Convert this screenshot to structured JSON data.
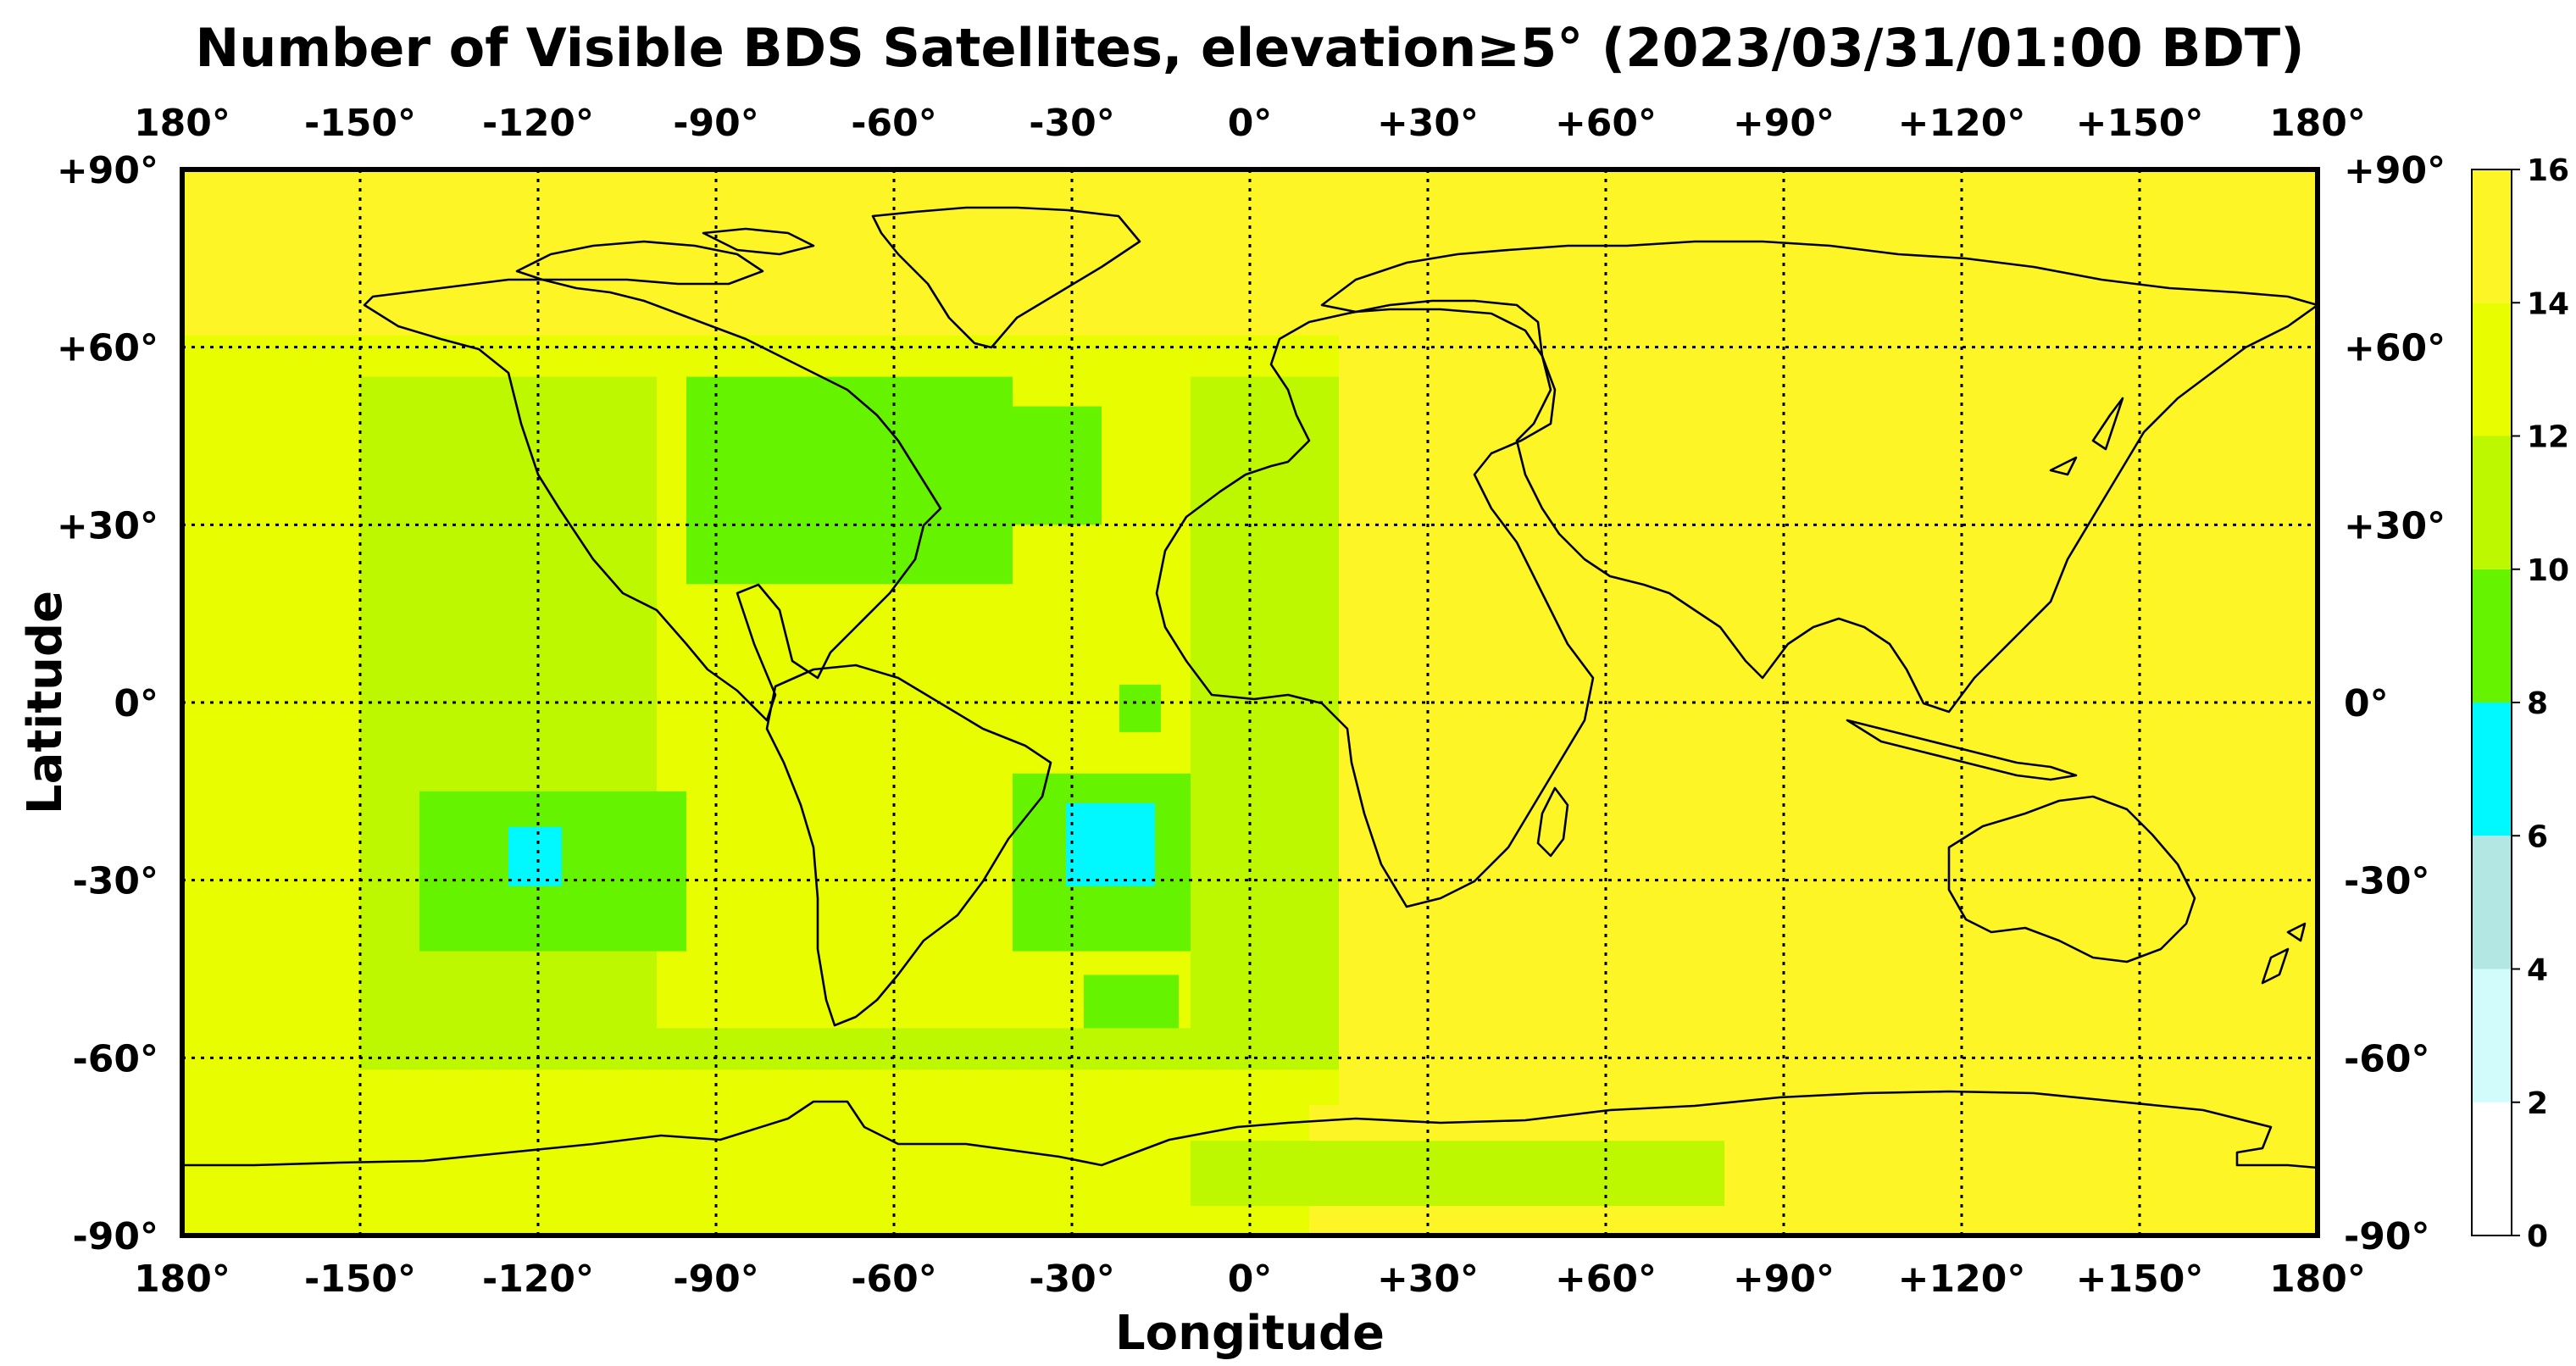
{
  "title": "Number of Visible BDS Satellites, elevation≥5° (2023/03/31/01:00 BDT)",
  "xlabel": "Longitude",
  "ylabel": "Latitude",
  "lon_ticks": [
    "180°",
    "-150°",
    "-120°",
    "-90°",
    "-60°",
    "-30°",
    "0°",
    "+30°",
    "+60°",
    "+90°",
    "+120°",
    "+150°",
    "180°"
  ],
  "lat_ticks": [
    "+90°",
    "+60°",
    "+30°",
    "0°",
    "-30°",
    "-60°",
    "-90°"
  ],
  "colorbar": {
    "ticks": [
      "16",
      "14",
      "12",
      "10",
      "8",
      "6",
      "4",
      "2",
      "0"
    ],
    "bins": [
      {
        "from": 0,
        "to": 2,
        "color": "#ffffff"
      },
      {
        "from": 2,
        "to": 4,
        "color": "#d2fcfb"
      },
      {
        "from": 4,
        "to": 6,
        "color": "#b2e7e4"
      },
      {
        "from": 6,
        "to": 8,
        "color": "#00f8ff"
      },
      {
        "from": 8,
        "to": 10,
        "color": "#66f300"
      },
      {
        "from": 10,
        "to": 12,
        "color": "#bef800"
      },
      {
        "from": 12,
        "to": 14,
        "color": "#e7fd00"
      },
      {
        "from": 14,
        "to": 16,
        "color": "#fef526"
      }
    ]
  },
  "chart_data": {
    "type": "heatmap",
    "title": "Number of Visible BDS Satellites, elevation≥5° (2023/03/31/01:00 BDT)",
    "xlabel": "Longitude",
    "ylabel": "Latitude",
    "xlim": [
      -180,
      180
    ],
    "ylim": [
      -90,
      90
    ],
    "grid": true,
    "colorbar_range": [
      0,
      16
    ],
    "background_value": 15,
    "regions": [
      {
        "lon": [
          -180,
          180
        ],
        "lat": [
          -90,
          90
        ],
        "value": 15
      },
      {
        "lon": [
          -180,
          15
        ],
        "lat": [
          -68,
          62
        ],
        "value": 13
      },
      {
        "lon": [
          -180,
          10
        ],
        "lat": [
          -90,
          -64
        ],
        "value": 13
      },
      {
        "lon": [
          -10,
          80
        ],
        "lat": [
          -85,
          -74
        ],
        "value": 11
      },
      {
        "lon": [
          -150,
          15
        ],
        "lat": [
          -62,
          55
        ],
        "value": 11
      },
      {
        "lon": [
          -100,
          -10
        ],
        "lat": [
          -55,
          58
        ],
        "value": 13
      },
      {
        "lon": [
          -95,
          -40
        ],
        "lat": [
          20,
          55
        ],
        "value": 9
      },
      {
        "lon": [
          -55,
          -25
        ],
        "lat": [
          30,
          50
        ],
        "value": 9
      },
      {
        "lon": [
          -140,
          -95
        ],
        "lat": [
          -42,
          -15
        ],
        "value": 9
      },
      {
        "lon": [
          -40,
          -10
        ],
        "lat": [
          -42,
          -12
        ],
        "value": 9
      },
      {
        "lon": [
          -28,
          -12
        ],
        "lat": [
          -55,
          -46
        ],
        "value": 9
      },
      {
        "lon": [
          -22,
          -15
        ],
        "lat": [
          -5,
          3
        ],
        "value": 9
      },
      {
        "lon": [
          -125,
          -116
        ],
        "lat": [
          -31,
          -21
        ],
        "value": 7
      },
      {
        "lon": [
          -31,
          -16
        ],
        "lat": [
          -31,
          -17
        ],
        "value": 7
      }
    ]
  }
}
